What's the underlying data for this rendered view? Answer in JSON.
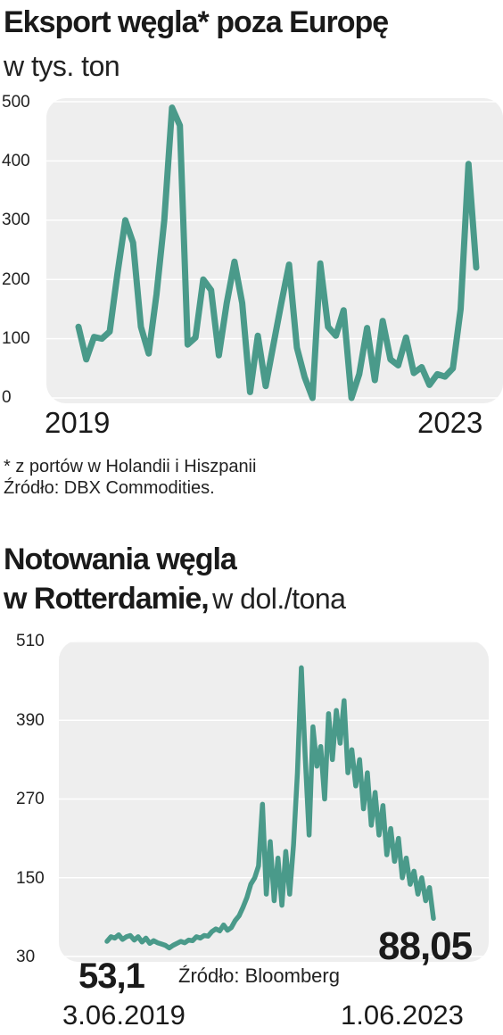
{
  "chart1": {
    "title": "Eksport węgla* poza Europę",
    "unit": "w tys. ton",
    "start_label": "2019",
    "end_label": "2023",
    "footnote": "* z portów w Holandii i Hiszpanii",
    "source": "Źródło: DBX Commodities.",
    "line_color": "#4a9a8a",
    "y_ticks": [
      "500",
      "400",
      "300",
      "200",
      "100",
      "0"
    ]
  },
  "chart2": {
    "title_line1": "Notowania węgla",
    "title_line2": "w Rotterdamie,",
    "unit": "w dol./tona",
    "y_ticks": [
      "510",
      "390",
      "270",
      "150",
      "30"
    ],
    "start_value": "53,1",
    "end_value": "88,05",
    "start_date": "3.06.2019",
    "end_date": "1.06.2023",
    "source": "Źródło: Bloomberg",
    "line_color": "#4a9a8a"
  },
  "chart_data": [
    {
      "type": "line",
      "title": "Eksport węgla* poza Europę",
      "ylabel": "w tys. ton",
      "ylim": [
        0,
        500
      ],
      "grid": true,
      "x_range": [
        "2019",
        "2023"
      ],
      "series": [
        {
          "values": [
            120,
            65,
            103,
            100,
            112,
            210,
            300,
            262,
            120,
            75,
            175,
            300,
            490,
            460,
            90,
            102,
            200,
            182,
            72,
            160,
            230,
            160,
            10,
            105,
            20,
            90,
            160,
            225,
            85,
            35,
            0,
            227,
            120,
            105,
            148,
            0,
            40,
            118,
            30,
            130,
            65,
            55,
            102,
            42,
            52,
            22,
            40,
            36,
            50,
            150,
            395,
            220
          ]
        }
      ]
    },
    {
      "type": "line",
      "title": "Notowania węgla w Rotterdamie,",
      "ylabel": "w dol./tona",
      "ylim": [
        30,
        510
      ],
      "grid": true,
      "x_range": [
        "3.06.2019",
        "1.06.2023"
      ],
      "series": [
        {
          "values": [
            53.1,
            60,
            58,
            63,
            56,
            60,
            62,
            55,
            60,
            52,
            58,
            50,
            54,
            51,
            49,
            47,
            43,
            47,
            50,
            53,
            51,
            55,
            54,
            60,
            58,
            62,
            61,
            68,
            72,
            69,
            78,
            70,
            74,
            85,
            92,
            105,
            120,
            140,
            150,
            168,
            262,
            125,
            205,
            115,
            180,
            108,
            190,
            125,
            200,
            310,
            470,
            335,
            215,
            380,
            320,
            350,
            270,
            400,
            330,
            405,
            355,
            420,
            310,
            345,
            290,
            330,
            255,
            310,
            230,
            280,
            215,
            260,
            185,
            225,
            175,
            210,
            150,
            180,
            140,
            160,
            125,
            150,
            115,
            135,
            88.05
          ]
        }
      ]
    }
  ]
}
